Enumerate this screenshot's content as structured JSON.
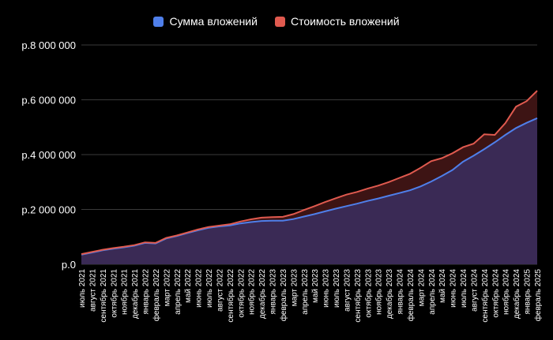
{
  "chart_data": {
    "type": "area",
    "legend_position": "top-center",
    "grid": true,
    "ylim": [
      0,
      8000000
    ],
    "y_ticks": [
      {
        "value": 0,
        "label": "р.0"
      },
      {
        "value": 2000000,
        "label": "р.2 000 000"
      },
      {
        "value": 4000000,
        "label": "р.4 000 000"
      },
      {
        "value": 6000000,
        "label": "р.6 000 000"
      },
      {
        "value": 8000000,
        "label": "р.8 000 000"
      }
    ],
    "categories": [
      "июль 2021",
      "август 2021",
      "сентябрь 2021",
      "октябрь 2021",
      "ноябрь 2021",
      "декабрь 2021",
      "январь 2022",
      "февраль 2022",
      "март 2022",
      "апрель 2022",
      "май 2022",
      "июнь 2022",
      "июль 2022",
      "август 2022",
      "сентябрь 2022",
      "октябрь 2022",
      "ноябрь 2022",
      "декабрь 2022",
      "январь 2023",
      "февраль 2023",
      "март 2023",
      "апрель 2023",
      "май 2023",
      "июнь 2023",
      "июль 2023",
      "август 2023",
      "сентябрь 2023",
      "октябрь 2023",
      "ноябрь 2023",
      "декабрь 2023",
      "январь 2024",
      "февраль 2024",
      "март 2024",
      "апрель 2024",
      "май 2024",
      "июнь 2024",
      "июль 2024",
      "август 2024",
      "сентябрь 2024",
      "октябрь 2024",
      "ноябрь 2024",
      "декабрь 2024",
      "январь 2025",
      "февраль 2025"
    ],
    "series": [
      {
        "name": "Сумма вложений",
        "color": "#4f7fea",
        "fill": "#3a2a55",
        "values": [
          350000,
          430000,
          510000,
          570000,
          620000,
          680000,
          780000,
          760000,
          940000,
          1030000,
          1140000,
          1240000,
          1330000,
          1380000,
          1420000,
          1490000,
          1540000,
          1580000,
          1590000,
          1590000,
          1650000,
          1740000,
          1830000,
          1930000,
          2030000,
          2120000,
          2210000,
          2310000,
          2400000,
          2500000,
          2600000,
          2700000,
          2840000,
          3020000,
          3220000,
          3440000,
          3740000,
          3960000,
          4200000,
          4450000,
          4720000,
          4970000,
          5160000,
          5330000
        ]
      },
      {
        "name": "Стоимость вложений",
        "color": "#e05a4f",
        "fill": "#3d1414",
        "values": [
          370000,
          450000,
          530000,
          590000,
          640000,
          700000,
          800000,
          780000,
          960000,
          1050000,
          1160000,
          1270000,
          1360000,
          1410000,
          1460000,
          1560000,
          1640000,
          1700000,
          1720000,
          1730000,
          1830000,
          1980000,
          2120000,
          2270000,
          2410000,
          2540000,
          2640000,
          2760000,
          2870000,
          3000000,
          3150000,
          3300000,
          3520000,
          3760000,
          3870000,
          4050000,
          4270000,
          4400000,
          4740000,
          4720000,
          5150000,
          5750000,
          5950000,
          6330000
        ]
      }
    ]
  }
}
